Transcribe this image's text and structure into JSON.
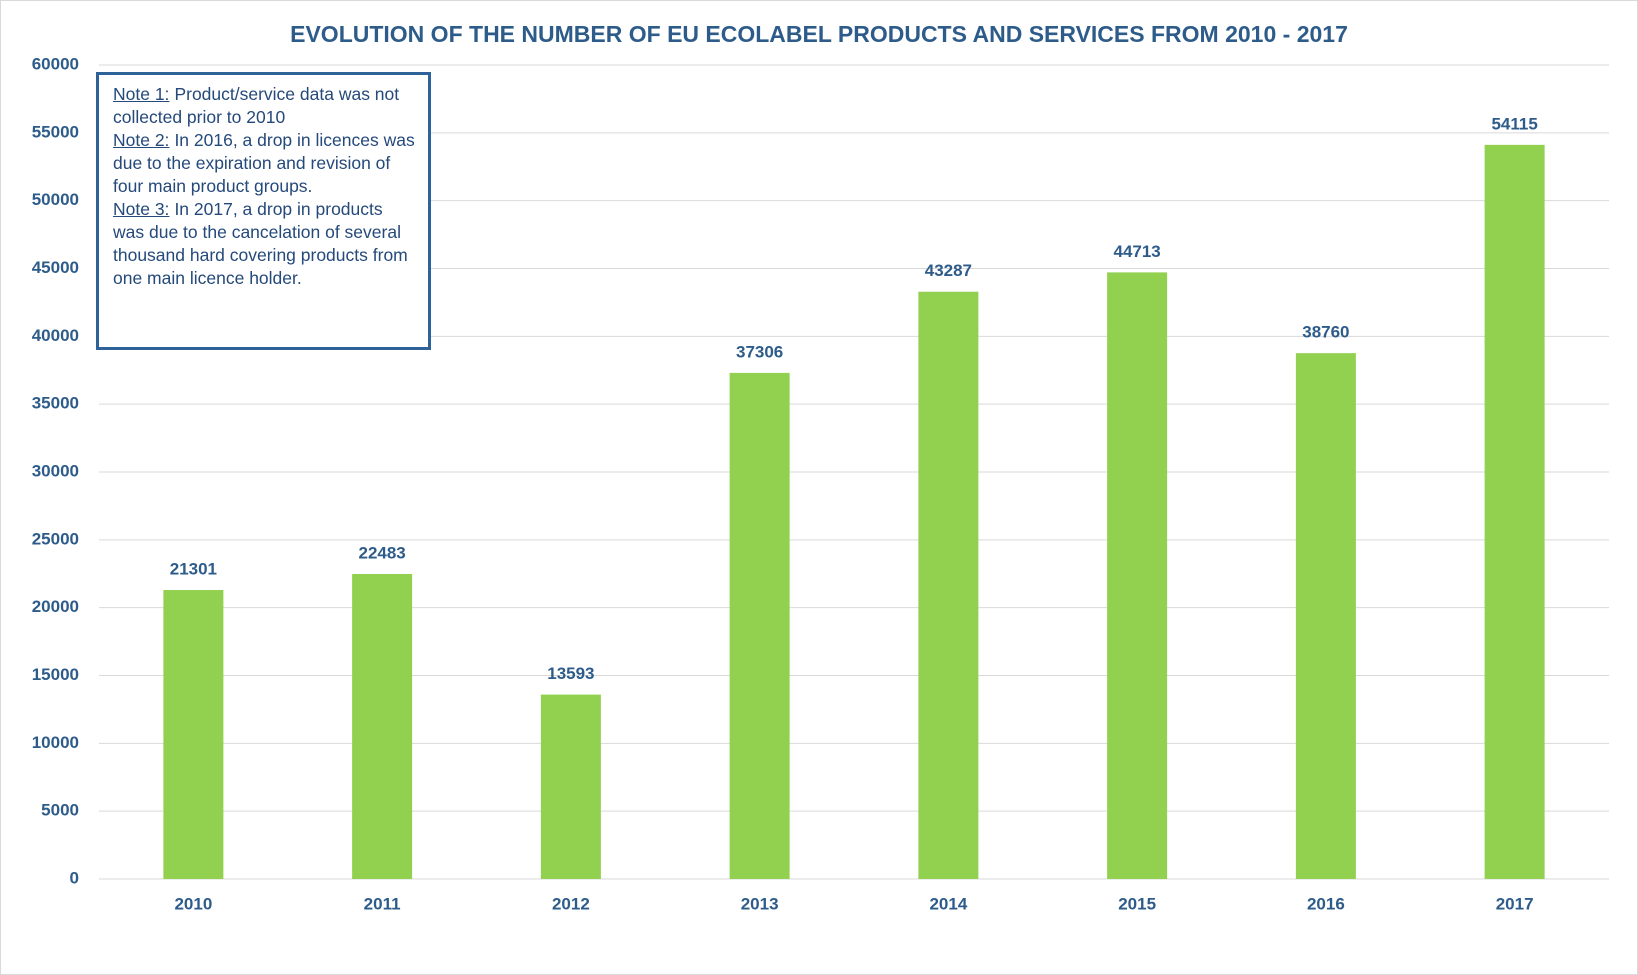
{
  "chart_data": {
    "type": "bar",
    "title": "EVOLUTION OF THE NUMBER OF EU ECOLABEL PRODUCTS AND SERVICES FROM 2010 - 2017",
    "categories": [
      "2010",
      "2011",
      "2012",
      "2013",
      "2014",
      "2015",
      "2016",
      "2017"
    ],
    "values": [
      21301,
      22483,
      13593,
      37306,
      43287,
      44713,
      38760,
      54115
    ],
    "color": "#92d050",
    "ylim": [
      0,
      60000
    ],
    "yticks": [
      0,
      5000,
      10000,
      15000,
      20000,
      25000,
      30000,
      35000,
      40000,
      45000,
      50000,
      55000,
      60000
    ],
    "grid": true,
    "notes": [
      {
        "label": "Note 1:",
        "text": "Product/service data was not collected prior to 2010"
      },
      {
        "label": "Note 2:",
        "text": "In 2016, a drop in licences was due to the expiration and revision  of four main product groups."
      },
      {
        "label": "Note 3:",
        "text": "In 2017, a drop in products was due to the cancelation of several thousand hard covering products from one main licence holder."
      }
    ]
  }
}
